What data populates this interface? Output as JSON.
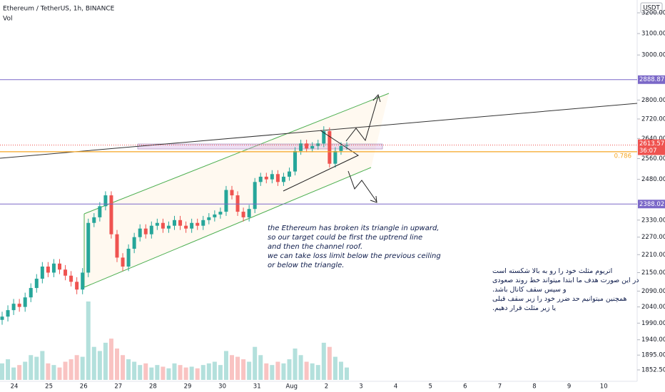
{
  "chart_data": {
    "type": "candlestick",
    "title": "Ethereum / TetherUS, 1h, BINANCE",
    "volume_label": "Vol",
    "currency": "USDT",
    "log_scale": true,
    "ylim": [
      1852.5,
      3200
    ],
    "yticks": [
      {
        "value": 3200,
        "label": "3200.00"
      },
      {
        "value": 3100,
        "label": "3100.00"
      },
      {
        "value": 3000,
        "label": "3000.00"
      },
      {
        "value": 2800,
        "label": "2800.00"
      },
      {
        "value": 2720,
        "label": "2720.00"
      },
      {
        "value": 2640,
        "label": "2640.00"
      },
      {
        "value": 2560,
        "label": "2560.00"
      },
      {
        "value": 2480,
        "label": "2480.00"
      },
      {
        "value": 2330,
        "label": "2330.00"
      },
      {
        "value": 2270,
        "label": "2270.00"
      },
      {
        "value": 2210,
        "label": "2210.00"
      },
      {
        "value": 2150,
        "label": "2150.00"
      },
      {
        "value": 2090,
        "label": "2090.00"
      },
      {
        "value": 2040,
        "label": "2040.00"
      },
      {
        "value": 1990,
        "label": "1990.00"
      },
      {
        "value": 1940,
        "label": "1940.00"
      },
      {
        "value": 1895,
        "label": "1895.00"
      },
      {
        "value": 1852.5,
        "label": "1852.50"
      }
    ],
    "xtick_labels": [
      "24",
      "25",
      "26",
      "27",
      "28",
      "29",
      "30",
      "31",
      "Aug",
      "2",
      "3",
      "4",
      "5",
      "6",
      "7",
      "8",
      "9",
      "10"
    ],
    "up_color": "#26a69a",
    "down_color": "#ef5350",
    "open": [
      2000,
      2010,
      2030,
      2050,
      2040,
      2070,
      2100,
      2130,
      2170,
      2150,
      2180,
      2160,
      2140,
      2120,
      2095,
      2150,
      2320,
      2340,
      2380,
      2420,
      2280,
      2200,
      2170,
      2230,
      2270,
      2300,
      2280,
      2310,
      2320,
      2300,
      2310,
      2330,
      2310,
      2300,
      2320,
      2310,
      2330,
      2340,
      2350,
      2360,
      2440,
      2420,
      2360,
      2340,
      2370,
      2470,
      2490,
      2480,
      2500,
      2470,
      2490,
      2510,
      2590,
      2620,
      2600,
      2610,
      2620,
      2670,
      2540,
      2590,
      2610
    ],
    "high": [
      2025,
      2045,
      2065,
      2065,
      2085,
      2115,
      2145,
      2185,
      2185,
      2195,
      2195,
      2175,
      2155,
      2135,
      2165,
      2335,
      2355,
      2395,
      2435,
      2435,
      2295,
      2215,
      2245,
      2285,
      2315,
      2315,
      2325,
      2335,
      2335,
      2325,
      2345,
      2345,
      2325,
      2335,
      2335,
      2345,
      2355,
      2365,
      2375,
      2455,
      2455,
      2435,
      2375,
      2385,
      2485,
      2505,
      2505,
      2515,
      2515,
      2505,
      2525,
      2605,
      2635,
      2635,
      2625,
      2635,
      2690,
      2685,
      2605,
      2625,
      2625
    ],
    "low": [
      1985,
      1995,
      2015,
      2025,
      2025,
      2055,
      2085,
      2115,
      2135,
      2135,
      2145,
      2125,
      2105,
      2080,
      2080,
      2135,
      2305,
      2325,
      2365,
      2265,
      2185,
      2155,
      2155,
      2215,
      2255,
      2265,
      2265,
      2295,
      2285,
      2285,
      2295,
      2295,
      2285,
      2285,
      2295,
      2295,
      2315,
      2325,
      2335,
      2345,
      2405,
      2345,
      2325,
      2325,
      2355,
      2455,
      2465,
      2465,
      2455,
      2455,
      2475,
      2495,
      2575,
      2585,
      2585,
      2595,
      2605,
      2525,
      2525,
      2575,
      2595
    ],
    "close": [
      2010,
      2030,
      2050,
      2040,
      2070,
      2100,
      2130,
      2170,
      2150,
      2180,
      2160,
      2140,
      2120,
      2095,
      2150,
      2320,
      2340,
      2380,
      2420,
      2280,
      2200,
      2170,
      2230,
      2270,
      2300,
      2280,
      2310,
      2320,
      2300,
      2310,
      2330,
      2310,
      2300,
      2320,
      2310,
      2330,
      2340,
      2350,
      2360,
      2440,
      2420,
      2360,
      2340,
      2370,
      2470,
      2490,
      2480,
      2500,
      2470,
      2490,
      2510,
      2590,
      2620,
      2600,
      2610,
      2620,
      2670,
      2540,
      2590,
      2610,
      2613.57
    ],
    "volume": [
      20,
      25,
      15,
      18,
      22,
      30,
      28,
      35,
      20,
      18,
      15,
      22,
      25,
      30,
      28,
      95,
      40,
      35,
      45,
      50,
      38,
      30,
      25,
      22,
      18,
      20,
      15,
      18,
      16,
      14,
      20,
      18,
      15,
      16,
      14,
      18,
      20,
      22,
      18,
      35,
      30,
      28,
      25,
      22,
      40,
      30,
      20,
      18,
      22,
      20,
      25,
      38,
      30,
      22,
      20,
      18,
      45,
      40,
      28,
      22,
      15
    ],
    "price_levels": [
      {
        "value": 2888.87,
        "color": "#7b68c8"
      },
      {
        "value": 2388.02,
        "color": "#7b68c8"
      }
    ],
    "last_price": 2613.57,
    "last_color": "#ef5350",
    "countdown": "36:07",
    "fib_level": 0.786,
    "fib_price": 2587,
    "fib_color": "#f5a623",
    "annotation_en": [
      "the Ethereum has broken its triangle in upward,",
      "so our target could be first the uptrend line",
      "and then the channel roof.",
      "we can take loss limit below the previous ceiling",
      "or below the triangle."
    ],
    "annotation_fa": [
      "اتریوم  مثلث خود را رو به بالا شکسته است",
      "در این صورت هدف ما ابتدا میتواند خط روند صعودی",
      "و سپس سقف کانال باشد.",
      "همچنین میتوانیم حد ضرر خود را زیر سقف قبلی",
      "یا زیر مثلث قرار دهیم."
    ]
  }
}
